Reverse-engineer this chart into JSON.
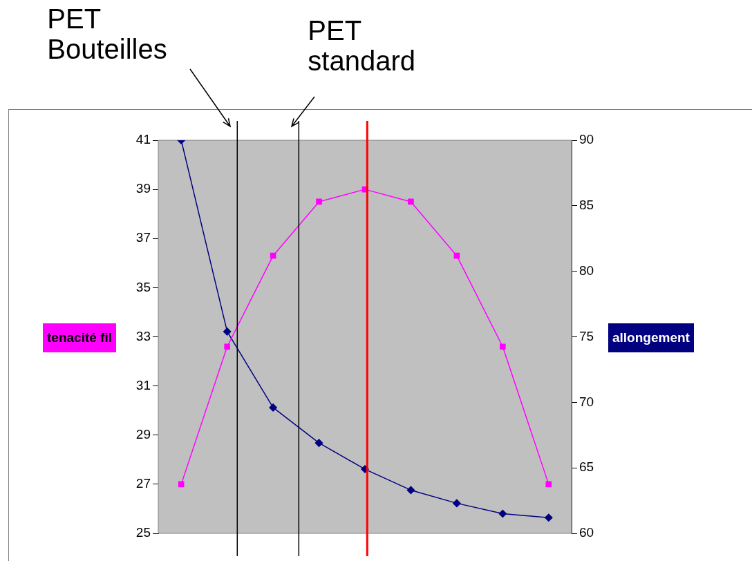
{
  "chart_data": {
    "type": "line",
    "ylabel": "tenacité fil",
    "y2label": "allongement",
    "categories": [
      null,
      null,
      null,
      null,
      null,
      null,
      null,
      null,
      null
    ],
    "series": [
      {
        "color": "#ff00ff",
        "marker": "square",
        "values": [
          27,
          32.6,
          36.3,
          38.5,
          39,
          38.5,
          36.3,
          32.6,
          27
        ]
      },
      {
        "color": "#000080",
        "marker": "diamond",
        "axis": "y2",
        "values": [
          90,
          75.4,
          69.6,
          66.9,
          64.9,
          63.3,
          62.3,
          61.5,
          61.2
        ]
      }
    ],
    "ylim": [
      25,
      41
    ],
    "yticks": [
      25,
      27,
      29,
      31,
      33,
      35,
      37,
      39,
      41
    ],
    "y2lim": [
      60,
      90
    ],
    "y2ticks": [
      60,
      65,
      70,
      75,
      80,
      85,
      90
    ],
    "annotations": [
      "PET Bouteilles",
      "PET standard"
    ],
    "grid": false,
    "legend": false,
    "line_style": "solid"
  }
}
